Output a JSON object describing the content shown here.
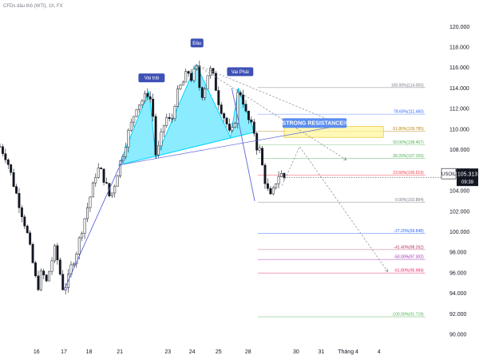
{
  "chart_data": {
    "type": "candlestick",
    "title": "CFDs dầu thô (WTI), 1h, FX",
    "symbol": "USOIL",
    "last_price": "105.313",
    "countdown": "09:39",
    "y_ticks": [
      90.0,
      92.0,
      94.0,
      96.0,
      98.0,
      100.0,
      102.0,
      104.0,
      106.0,
      108.0,
      110.0,
      112.0,
      114.0,
      116.0,
      118.0,
      120.0
    ],
    "y_tick_labels": [
      "90.000",
      "92.000",
      "94.000",
      "96.000",
      "98.000",
      "100.000",
      "102.000",
      "104.000",
      "106.000",
      "108.000",
      "110.000",
      "112.000",
      "114.000",
      "116.000",
      "118.000",
      "120.000"
    ],
    "ylim": [
      89.0,
      121.5
    ],
    "xlim": [
      0,
      100
    ],
    "x_ticks": [
      {
        "x": 8.3,
        "label": "16"
      },
      {
        "x": 14.5,
        "label": "17"
      },
      {
        "x": 20.2,
        "label": "18"
      },
      {
        "x": 27.2,
        "label": "21"
      },
      {
        "x": 38.1,
        "label": "23"
      },
      {
        "x": 43.6,
        "label": "24"
      },
      {
        "x": 49.6,
        "label": "25"
      },
      {
        "x": 56.3,
        "label": "28"
      },
      {
        "x": 67.2,
        "label": "30"
      },
      {
        "x": 72.9,
        "label": "31"
      },
      {
        "x": 79.0,
        "label": "Tháng 4"
      },
      {
        "x": 86.0,
        "label": "4"
      }
    ],
    "price_path": [
      [
        0,
        108.3
      ],
      [
        1.5,
        107.2
      ],
      [
        3,
        104.8
      ],
      [
        4.5,
        102.5
      ],
      [
        6,
        100.2
      ],
      [
        7.5,
        96.8
      ],
      [
        8.5,
        94.4
      ],
      [
        9.5,
        96.2
      ],
      [
        10.5,
        95.0
      ],
      [
        11.5,
        96.8
      ],
      [
        12.5,
        98.4
      ],
      [
        13.5,
        96.2
      ],
      [
        14.3,
        94.5
      ],
      [
        15.2,
        94.9
      ],
      [
        16.2,
        96.7
      ],
      [
        17.2,
        97.8
      ],
      [
        18.2,
        99.6
      ],
      [
        19.2,
        101.3
      ],
      [
        20.2,
        103.0
      ],
      [
        21.2,
        104.6
      ],
      [
        22,
        106.2
      ],
      [
        23,
        105.8
      ],
      [
        24,
        104.7
      ],
      [
        25,
        103.2
      ],
      [
        26,
        104.6
      ],
      [
        27,
        106.4
      ],
      [
        28,
        107.8
      ],
      [
        29,
        109.5
      ],
      [
        30,
        110.8
      ],
      [
        31,
        112.3
      ],
      [
        32.5,
        112.9
      ],
      [
        33.8,
        113.7
      ],
      [
        34.7,
        111.4
      ],
      [
        35.4,
        107.2
      ],
      [
        36.2,
        108.5
      ],
      [
        37,
        110.2
      ],
      [
        38,
        111.3
      ],
      [
        38.8,
        110.4
      ],
      [
        39.6,
        112.5
      ],
      [
        40.6,
        113.9
      ],
      [
        41.6,
        114.6
      ],
      [
        42.6,
        115.7
      ],
      [
        43.6,
        114.8
      ],
      [
        44.5,
        116.3
      ],
      [
        45.2,
        114.2
      ],
      [
        46.1,
        113.2
      ],
      [
        47,
        115.3
      ],
      [
        47.9,
        115.8
      ],
      [
        48.8,
        114.4
      ],
      [
        49.6,
        112.7
      ],
      [
        50.5,
        111.6
      ],
      [
        51.4,
        110.6
      ],
      [
        52.3,
        109.2
      ],
      [
        53.2,
        110.5
      ],
      [
        54.1,
        114.0
      ],
      [
        55,
        113.1
      ],
      [
        55.9,
        111.3
      ],
      [
        56.8,
        110.5
      ],
      [
        57.7,
        109.7
      ],
      [
        58.4,
        108.0
      ],
      [
        59.1,
        107.9
      ],
      [
        59.8,
        105.4
      ],
      [
        60.5,
        104.6
      ],
      [
        61.1,
        103.2
      ],
      [
        61.8,
        103.6
      ],
      [
        62.5,
        104.8
      ],
      [
        63.2,
        105.5
      ],
      [
        63.9,
        105.6
      ],
      [
        64.5,
        105.3
      ]
    ],
    "fib_levels": [
      {
        "label": "100.00%(114.050)",
        "price": 114.05,
        "color": "#787b86"
      },
      {
        "label": "78.60%(111.460)",
        "price": 111.46,
        "color": "#2962ff"
      },
      {
        "label": "61.80%(109.785)",
        "price": 109.785,
        "color": "#b8860b"
      },
      {
        "label": "50.00%(108.467)",
        "price": 108.467,
        "color": "#4caf50"
      },
      {
        "label": "38.20%(107.150)",
        "price": 107.15,
        "color": "#4caf50"
      },
      {
        "label": "23.60%(105.519)",
        "price": 105.519,
        "color": "#f23645"
      },
      {
        "label": "0.00%(102.884)",
        "price": 102.884,
        "color": "#787b86"
      },
      {
        "label": "-27.20%(99.848)",
        "price": 99.848,
        "color": "#2962ff"
      },
      {
        "label": "-41.40%(98.262)",
        "price": 98.262,
        "color": "#b03060"
      },
      {
        "label": "-50.00%(97.302)",
        "price": 97.302,
        "color": "#9c27b0"
      },
      {
        "label": "-61.80%(95.984)",
        "price": 95.984,
        "color": "#e91e63"
      },
      {
        "label": "-100.00%(91.719)",
        "price": 91.719,
        "color": "#4caf50"
      }
    ],
    "fib_x_range": [
      58.5,
      96.5
    ],
    "annotations": [
      {
        "text": "Đầu",
        "x": 44.7,
        "price": 118.4
      },
      {
        "text": "Vai trái",
        "x": 34.4,
        "price": 115.0
      },
      {
        "text": "Vai Phải",
        "x": 54.5,
        "price": 115.6
      },
      {
        "text": "STRONG RESISTANCE!!",
        "x": 71.4,
        "price": 110.6
      }
    ],
    "head_shoulders_polygon": [
      [
        27.0,
        106.5
      ],
      [
        33.8,
        113.7
      ],
      [
        35.4,
        107.2
      ],
      [
        44.5,
        116.3
      ],
      [
        52.3,
        109.2
      ],
      [
        54.1,
        114.0
      ],
      [
        57.7,
        109.7
      ]
    ],
    "neckline": [
      [
        27.0,
        106.5
      ],
      [
        76.6,
        110.3
      ]
    ],
    "resistance_zone": {
      "x0": 64.5,
      "x1": 87.0,
      "y_low": 109.2,
      "y_high": 110.25
    },
    "projection_paths": [
      [
        [
          44.5,
          116.3
        ],
        [
          78.6,
          107.0
        ]
      ],
      [
        [
          44.5,
          116.3
        ],
        [
          77.0,
          110.5
        ]
      ],
      [
        [
          64.0,
          104.5
        ],
        [
          68.0,
          108.3
        ],
        [
          88.0,
          96.1
        ]
      ]
    ],
    "trendlines": [
      [
        [
          14.5,
          94.3
        ],
        [
          28.0,
          107.2
        ]
      ],
      [
        [
          52.6,
          114.0
        ],
        [
          57.8,
          103.0
        ]
      ]
    ],
    "colors": {
      "bull": "#089981",
      "bear": "#131722",
      "candle": "#131722",
      "fill": "#00d4ff",
      "price_tag": "#131722",
      "annotation": "#3f51b5",
      "resistance_fill": "#fff59d",
      "projection": "#9598a1",
      "trendline": "#5e63d8"
    }
  }
}
